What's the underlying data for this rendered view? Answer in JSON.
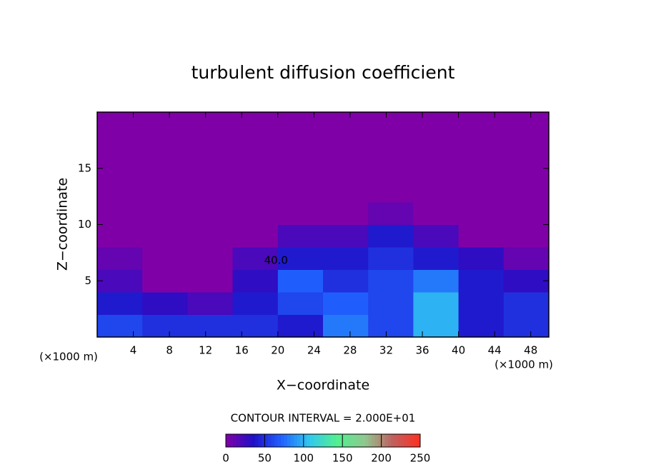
{
  "chart_data": {
    "type": "contour",
    "title": "turbulent diffusion coefficient",
    "xlabel": "X−coordinate",
    "ylabel": "Z−coordinate",
    "xunit": "(×1000 m)",
    "yunit": "(×1000 m)",
    "contour_interval": "CONTOUR INTERVAL = 2.000E+01",
    "annotations": [
      {
        "text": "40.0",
        "x": 19.8,
        "y": 6.8
      }
    ],
    "xlim": [
      0,
      50
    ],
    "ylim": [
      0,
      20
    ],
    "xticks": [
      4,
      8,
      12,
      16,
      20,
      24,
      28,
      32,
      36,
      40,
      44,
      48
    ],
    "yticks": [
      5,
      10,
      15
    ],
    "x": [
      2.5,
      7.5,
      12.5,
      17.5,
      22.5,
      27.5,
      32.5,
      37.5,
      42.5,
      47.5
    ],
    "y": [
      1,
      3,
      5,
      7,
      9,
      11,
      13,
      15,
      17,
      19
    ],
    "z": [
      [
        60,
        50,
        50,
        50,
        40,
        80,
        60,
        100,
        40,
        50
      ],
      [
        40,
        30,
        20,
        40,
        60,
        70,
        60,
        100,
        40,
        50
      ],
      [
        20,
        0,
        0,
        30,
        70,
        50,
        60,
        80,
        40,
        30
      ],
      [
        10,
        0,
        0,
        20,
        40,
        40,
        50,
        40,
        30,
        10
      ],
      [
        0,
        0,
        0,
        0,
        20,
        20,
        40,
        20,
        0,
        0
      ],
      [
        0,
        0,
        0,
        0,
        0,
        0,
        10,
        0,
        0,
        0
      ],
      [
        0,
        0,
        0,
        0,
        0,
        0,
        0,
        0,
        0,
        0
      ],
      [
        0,
        0,
        0,
        0,
        0,
        0,
        0,
        0,
        0,
        0
      ],
      [
        0,
        0,
        0,
        0,
        0,
        0,
        0,
        0,
        0,
        0
      ],
      [
        0,
        0,
        0,
        0,
        0,
        0,
        0,
        0,
        0,
        0
      ]
    ],
    "clim": [
      0,
      250
    ],
    "cticks": [
      0,
      50,
      100,
      150,
      200,
      250
    ],
    "colormap": [
      "#8000a8",
      "#2010c8",
      "#2060ff",
      "#30c8f0",
      "#50f090",
      "#90c890",
      "#c06060",
      "#ff3020"
    ]
  }
}
